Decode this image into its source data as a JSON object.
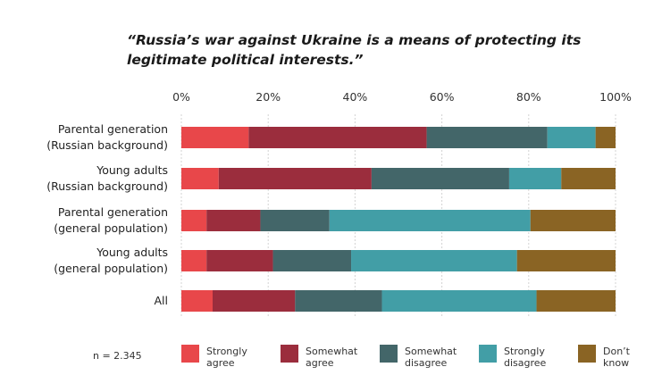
{
  "chart_data": {
    "type": "bar",
    "orientation": "horizontal",
    "stacked": true,
    "title_lines": [
      "“Russia’s war against Ukraine is a means of protecting its",
      "legitimate political interests.”"
    ],
    "x_ticks": [
      "0%",
      "20%",
      "40%",
      "60%",
      "80%",
      "100%"
    ],
    "xlim": [
      0,
      100
    ],
    "categories": [
      "Parental generation\n(Russian background)",
      "Young adults\n(Russian background)",
      "Parental generation\n(general population)",
      "Young adults\n(general population)",
      "All"
    ],
    "series": [
      {
        "name": "Strongly\nagree",
        "color": "#e8474a",
        "values": [
          15.5,
          8.6,
          5.8,
          5.8,
          7.2
        ]
      },
      {
        "name": "Somewhat\nagree",
        "color": "#9b2d3d",
        "values": [
          41.0,
          35.2,
          12.4,
          15.3,
          19.0
        ]
      },
      {
        "name": "Somewhat\ndisagree",
        "color": "#436669",
        "values": [
          27.8,
          31.7,
          15.9,
          18.0,
          20.0
        ]
      },
      {
        "name": "Strongly\ndisagree",
        "color": "#429ea6",
        "values": [
          11.1,
          12.0,
          46.3,
          38.2,
          35.6
        ]
      },
      {
        "name": "Don’t\nknow",
        "color": "#8a6424",
        "values": [
          4.6,
          12.5,
          19.6,
          22.7,
          18.2
        ]
      }
    ],
    "legend_position": "bottom",
    "note": "n = 2.345"
  }
}
